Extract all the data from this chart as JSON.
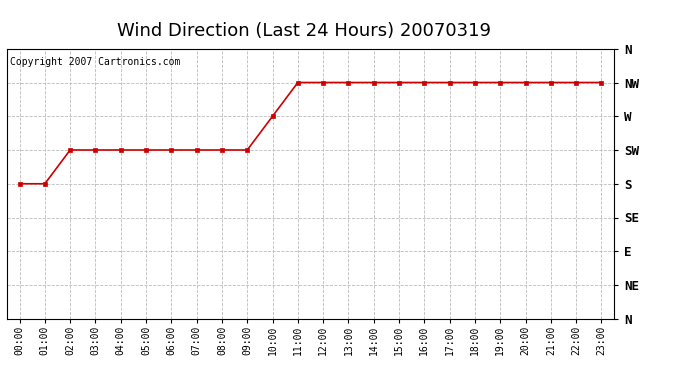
{
  "title": "Wind Direction (Last 24 Hours) 20070319",
  "copyright": "Copyright 2007 Cartronics.com",
  "background_color": "#ffffff",
  "plot_background": "#ffffff",
  "grid_color": "#bbbbbb",
  "line_color": "#cc0000",
  "marker_color": "#cc0000",
  "x_labels": [
    "00:00",
    "01:00",
    "02:00",
    "03:00",
    "04:00",
    "05:00",
    "06:00",
    "07:00",
    "08:00",
    "09:00",
    "10:00",
    "11:00",
    "12:00",
    "13:00",
    "14:00",
    "15:00",
    "16:00",
    "17:00",
    "18:00",
    "19:00",
    "20:00",
    "21:00",
    "22:00",
    "23:00"
  ],
  "y_ticks": [
    0,
    1,
    2,
    3,
    4,
    5,
    6,
    7,
    8
  ],
  "y_labels": [
    "N",
    "NE",
    "E",
    "SE",
    "S",
    "SW",
    "W",
    "NW",
    "N"
  ],
  "data_values": [
    4,
    4,
    5,
    5,
    5,
    5,
    5,
    5,
    5,
    5,
    6,
    7,
    7,
    7,
    7,
    7,
    7,
    7,
    7,
    7,
    7,
    7,
    7,
    7
  ],
  "title_fontsize": 13,
  "copyright_fontsize": 7,
  "tick_fontsize": 7,
  "ytick_fontsize": 9
}
